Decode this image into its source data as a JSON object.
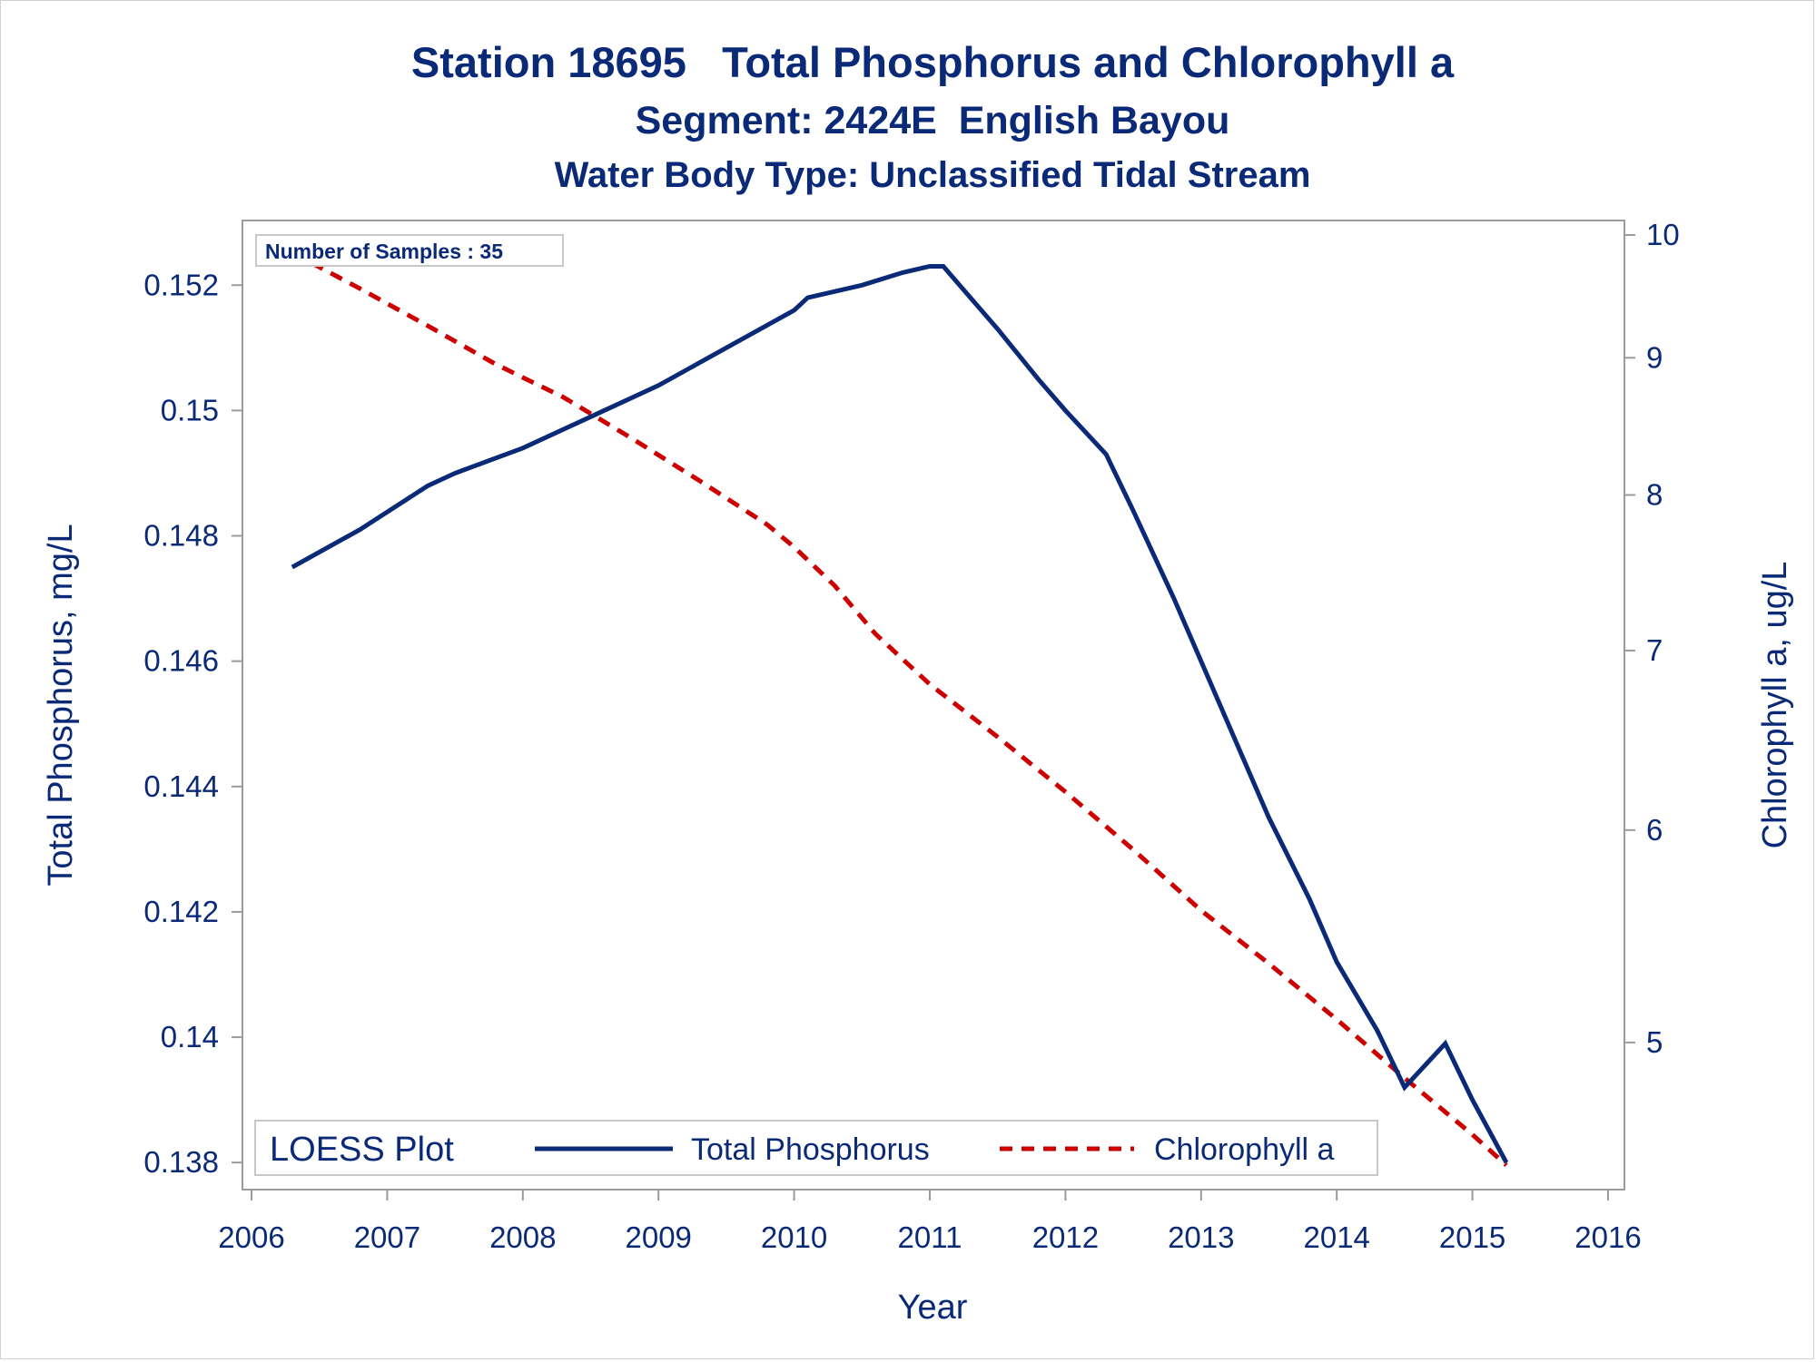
{
  "chart_data": {
    "type": "line",
    "title": "Station 18695   Total Phosphorus and Chlorophyll a",
    "subtitle": "Segment: 2424E  English Bayou",
    "subtitle2": "Water Body Type: Unclassified Tidal Stream",
    "xlabel": "Year",
    "ylabel": "Total Phosphorus, mg/L",
    "y2label": "Chlorophyll a, ug/L",
    "xlim": [
      2006,
      2016
    ],
    "ylim": [
      0.1378,
      0.1528
    ],
    "y2lim": [
      4.4,
      10.0
    ],
    "y2scale": "log",
    "x_ticks": [
      "2006",
      "2007",
      "2008",
      "2009",
      "2010",
      "2011",
      "2012",
      "2013",
      "2014",
      "2015",
      "2016"
    ],
    "y_ticks": [
      "0.138",
      "0.14",
      "0.142",
      "0.144",
      "0.146",
      "0.148",
      "0.15",
      "0.152"
    ],
    "y2_ticks": [
      "5",
      "6",
      "7",
      "8",
      "9",
      "10"
    ],
    "annotation": "Number of Samples : 35",
    "legend": {
      "title": "LOESS Plot",
      "placement": "bottom"
    },
    "colors": {
      "text": "#0a2a78",
      "phosphorus": "#0a2a78",
      "chlorophyll": "#cc0000",
      "axis": "#9a9a9a"
    },
    "series": [
      {
        "name": "Total Phosphorus",
        "axis": "left",
        "style": "solid",
        "x": [
          2006.3,
          2006.8,
          2007.3,
          2007.5,
          2008.0,
          2008.5,
          2009.0,
          2009.5,
          2010.0,
          2010.1,
          2010.5,
          2010.8,
          2011.0,
          2011.1,
          2011.3,
          2011.5,
          2011.8,
          2012.0,
          2012.3,
          2012.5,
          2012.8,
          2013.0,
          2013.3,
          2013.5,
          2013.8,
          2014.0,
          2014.3,
          2014.5,
          2014.8,
          2015.0,
          2015.25
        ],
        "y": [
          0.1475,
          0.1481,
          0.1488,
          0.149,
          0.1494,
          0.1499,
          0.1504,
          0.151,
          0.1516,
          0.1518,
          0.152,
          0.1522,
          0.1523,
          0.1523,
          0.1518,
          0.1513,
          0.1505,
          0.15,
          0.1493,
          0.1484,
          0.147,
          0.146,
          0.1445,
          0.1435,
          0.1422,
          0.1412,
          0.1401,
          0.1392,
          0.1399,
          0.139,
          0.138
        ]
      },
      {
        "name": "Chlorophyll a",
        "axis": "right",
        "style": "dashed",
        "x": [
          2006.3,
          2006.8,
          2007.3,
          2007.8,
          2008.3,
          2008.8,
          2009.3,
          2009.8,
          2010.0,
          2010.3,
          2010.6,
          2011.0,
          2011.5,
          2012.0,
          2012.5,
          2013.0,
          2013.5,
          2014.0,
          2014.5,
          2015.0,
          2015.25
        ],
        "y": [
          9.85,
          9.55,
          9.25,
          8.95,
          8.7,
          8.4,
          8.1,
          7.8,
          7.65,
          7.4,
          7.1,
          6.8,
          6.5,
          6.2,
          5.9,
          5.6,
          5.35,
          5.1,
          4.85,
          4.62,
          4.5
        ]
      }
    ]
  }
}
